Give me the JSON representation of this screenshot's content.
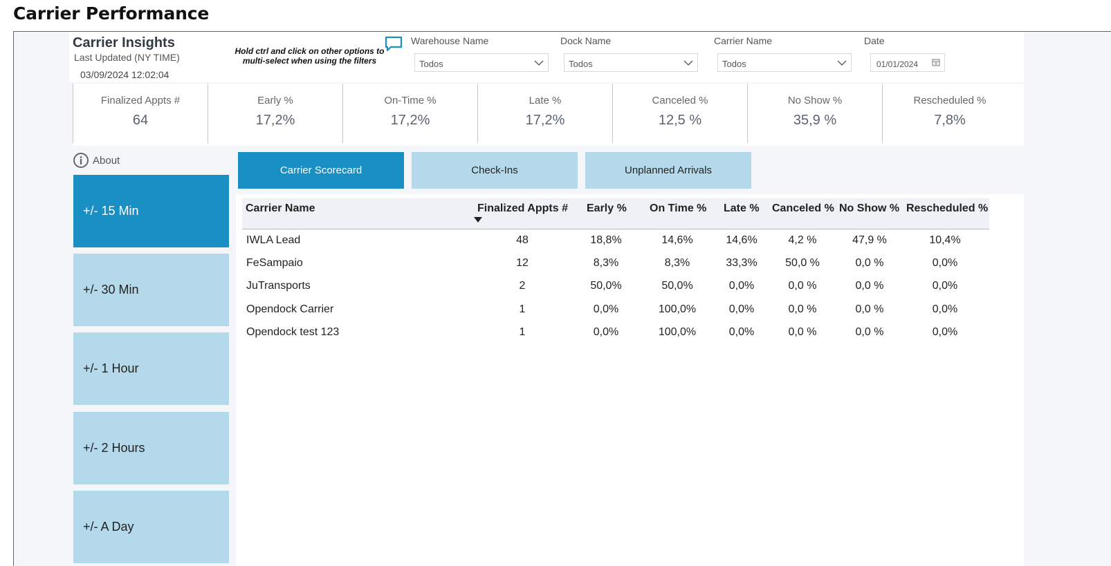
{
  "page": {
    "title": "Carrier Performance"
  },
  "header": {
    "title": "Carrier Insights",
    "updated_label": "Last Updated (NY TIME)",
    "updated_value": "03/09/2024 12:02:04",
    "hint": "Hold ctrl and click on other options to multi-select when using the filters",
    "hint_icon": "chat-bubble-icon"
  },
  "filters": {
    "warehouse": {
      "label": "Warehouse Name",
      "value": "Todos"
    },
    "dock": {
      "label": "Dock Name",
      "value": "Todos"
    },
    "carrier": {
      "label": "Carrier Name",
      "value": "Todos"
    },
    "date": {
      "label": "Date",
      "value": "01/01/2024"
    }
  },
  "kpis": [
    {
      "label": "Finalized Appts #",
      "value": "64"
    },
    {
      "label": "Early %",
      "value": "17,2%"
    },
    {
      "label": "On-Time %",
      "value": "17,2%"
    },
    {
      "label": "Late %",
      "value": "17,2%"
    },
    {
      "label": "Canceled %",
      "value": "12,5 %"
    },
    {
      "label": "No Show %",
      "value": "35,9 %"
    },
    {
      "label": "Rescheduled %",
      "value": "7,8%"
    }
  ],
  "sidebar": {
    "about": "About",
    "items": [
      {
        "label": "+/- 15 Min",
        "active": true
      },
      {
        "label": "+/- 30 Min"
      },
      {
        "label": "+/- 1 Hour"
      },
      {
        "label": "+/- 2 Hours"
      },
      {
        "label": "+/- A Day"
      }
    ]
  },
  "tabs": [
    {
      "label": "Carrier Scorecard",
      "active": true
    },
    {
      "label": "Check-Ins"
    },
    {
      "label": "Unplanned Arrivals"
    }
  ],
  "table": {
    "columns": [
      "Carrier Name",
      "Finalized Appts #",
      "Early %",
      "On Time %",
      "Late %",
      "Canceled %",
      "No Show %",
      "Rescheduled %"
    ],
    "rows": [
      [
        "IWLA Lead",
        "48",
        "18,8%",
        "14,6%",
        "14,6%",
        "4,2 %",
        "47,9 %",
        "10,4%"
      ],
      [
        "FeSampaio",
        "12",
        "8,3%",
        "8,3%",
        "33,3%",
        "50,0 %",
        "0,0 %",
        "0,0%"
      ],
      [
        "JuTransports",
        "2",
        "50,0%",
        "50,0%",
        "0,0%",
        "0,0 %",
        "0,0 %",
        "0,0%"
      ],
      [
        "Opendock Carrier",
        "1",
        "0,0%",
        "100,0%",
        "0,0%",
        "0,0 %",
        "0,0 %",
        "0,0%"
      ],
      [
        "Opendock test 123",
        "1",
        "0,0%",
        "100,0%",
        "0,0%",
        "0,0 %",
        "0,0 %",
        "0,0%"
      ]
    ]
  },
  "colors": {
    "accent": "#1a8fc4",
    "accent_light": "#b4d9ea",
    "background": "#f4f6f9"
  }
}
